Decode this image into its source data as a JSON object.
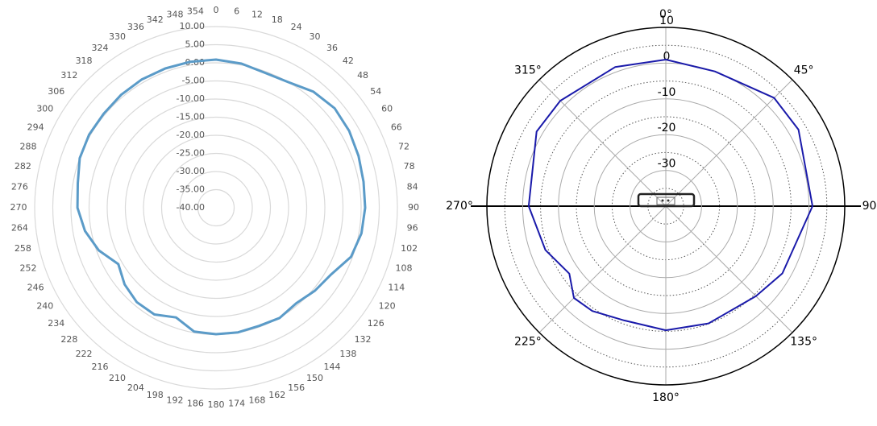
{
  "chart_data": [
    {
      "type": "polar",
      "color": "#5b9bc8",
      "grid": true,
      "theta": [
        0,
        10,
        20,
        30,
        40,
        50,
        60,
        70,
        80,
        90,
        100,
        110,
        120,
        130,
        140,
        150,
        160,
        170,
        180,
        190,
        200,
        210,
        220,
        230,
        240,
        250,
        260,
        270,
        280,
        290,
        300,
        310,
        320,
        330,
        340,
        350
      ],
      "values": [
        0.9,
        0.4,
        -0.4,
        0,
        1.8,
        2.7,
        2.4,
        1.8,
        1.3,
        1.1,
        0.7,
        -0.4,
        -3.3,
        -4.4,
        -5.6,
        -4.9,
        -5.3,
        -5.1,
        -5.1,
        -5.3,
        -7.8,
        -6,
        -6,
        -7.1,
        -8.9,
        -5.6,
        -3.3,
        -1.8,
        -1.3,
        0,
        0.4,
        0.4,
        0.7,
        0.9,
        0.9,
        0.9
      ],
      "rlim": [
        -40,
        10
      ],
      "rticks": [
        {
          "value": 10,
          "label": "10.00"
        },
        {
          "value": 5,
          "label": "5.00"
        },
        {
          "value": 0,
          "label": "0.00"
        },
        {
          "value": -5,
          "label": "-5.00"
        },
        {
          "value": -10,
          "label": "-10.00"
        },
        {
          "value": -15,
          "label": "-15.00"
        },
        {
          "value": -20,
          "label": "-20.00"
        },
        {
          "value": -25,
          "label": "-25.00"
        },
        {
          "value": -30,
          "label": "-30.00"
        },
        {
          "value": -35,
          "label": "-35.00"
        },
        {
          "value": -40,
          "label": "-40.00"
        }
      ],
      "thetaticks": [
        0,
        6,
        12,
        18,
        24,
        30,
        36,
        42,
        48,
        54,
        60,
        66,
        72,
        78,
        84,
        90,
        96,
        102,
        108,
        114,
        120,
        126,
        132,
        138,
        144,
        150,
        156,
        162,
        168,
        174,
        180,
        186,
        192,
        198,
        204,
        210,
        216,
        222,
        228,
        234,
        240,
        246,
        252,
        258,
        264,
        270,
        276,
        282,
        288,
        294,
        300,
        306,
        312,
        318,
        324,
        330,
        336,
        342,
        348,
        354
      ]
    },
    {
      "type": "polar",
      "color": "#1a1aaa",
      "grid": true,
      "theta": [
        0,
        20,
        45,
        60,
        90,
        120,
        135,
        160,
        180,
        200,
        215,
        225,
        235,
        250,
        270,
        300,
        315,
        340
      ],
      "values": [
        1,
        0.1,
        2.8,
        2.8,
        1,
        -2.4,
        -4.4,
        -5.1,
        -5.3,
        -6,
        -4.2,
        -3.7,
        -7.1,
        -4.2,
        -1.7,
        1.7,
        1.7,
        1.4
      ],
      "rlim": [
        -40,
        10
      ],
      "rticks": [
        10,
        0,
        -10,
        -20,
        -30
      ],
      "rminorticks": [
        5,
        -5,
        -15,
        -25,
        -35
      ],
      "thetaticks": [
        {
          "value": 0,
          "label": "0°"
        },
        {
          "value": 45,
          "label": "45°"
        },
        {
          "value": 90,
          "label": "90°"
        },
        {
          "value": 135,
          "label": "135°"
        },
        {
          "value": 180,
          "label": "180°"
        },
        {
          "value": 225,
          "label": "225°"
        },
        {
          "value": 270,
          "label": "270°"
        },
        {
          "value": 315,
          "label": "315°"
        }
      ]
    }
  ]
}
